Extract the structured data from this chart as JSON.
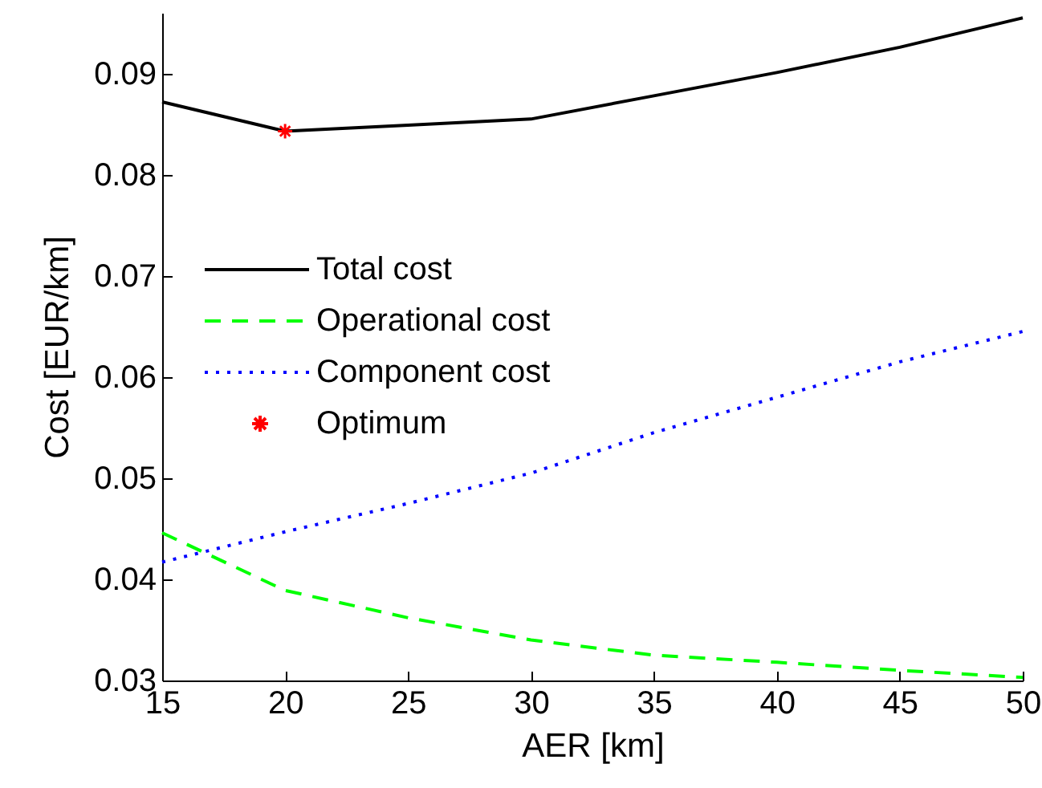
{
  "chart_data": {
    "type": "line",
    "xlabel": "AER [km]",
    "ylabel": "Cost [EUR/km]",
    "x": [
      15,
      20,
      25,
      30,
      35,
      40,
      45,
      50
    ],
    "xlim": [
      15,
      50
    ],
    "xticks": [
      15,
      20,
      25,
      30,
      35,
      40,
      45,
      50
    ],
    "ylim": [
      0.03,
      0.096
    ],
    "yticks": [
      0.03,
      0.04,
      0.05,
      0.06,
      0.07,
      0.08,
      0.09
    ],
    "grid": false,
    "legend": "left",
    "series": [
      {
        "name": "Total cost",
        "color": "#000000",
        "line_style": "solid",
        "values": [
          0.0872,
          0.0843,
          0.0849,
          0.0855,
          0.0878,
          0.0901,
          0.0926,
          0.0955
        ]
      },
      {
        "name": "Operational cost",
        "color": "#00ff00",
        "line_style": "dashed",
        "values": [
          0.0446,
          0.0389,
          0.0362,
          0.034,
          0.0325,
          0.0318,
          0.031,
          0.0303
        ]
      },
      {
        "name": "Component cost",
        "color": "#0000ff",
        "line_style": "dotted",
        "values": [
          0.0417,
          0.0447,
          0.0475,
          0.0505,
          0.0545,
          0.058,
          0.0615,
          0.0645
        ]
      },
      {
        "name": "Optimum",
        "type": "scatter",
        "marker": "cross",
        "color": "#ff0000",
        "x": [
          20
        ],
        "values": [
          0.0843
        ]
      }
    ]
  }
}
